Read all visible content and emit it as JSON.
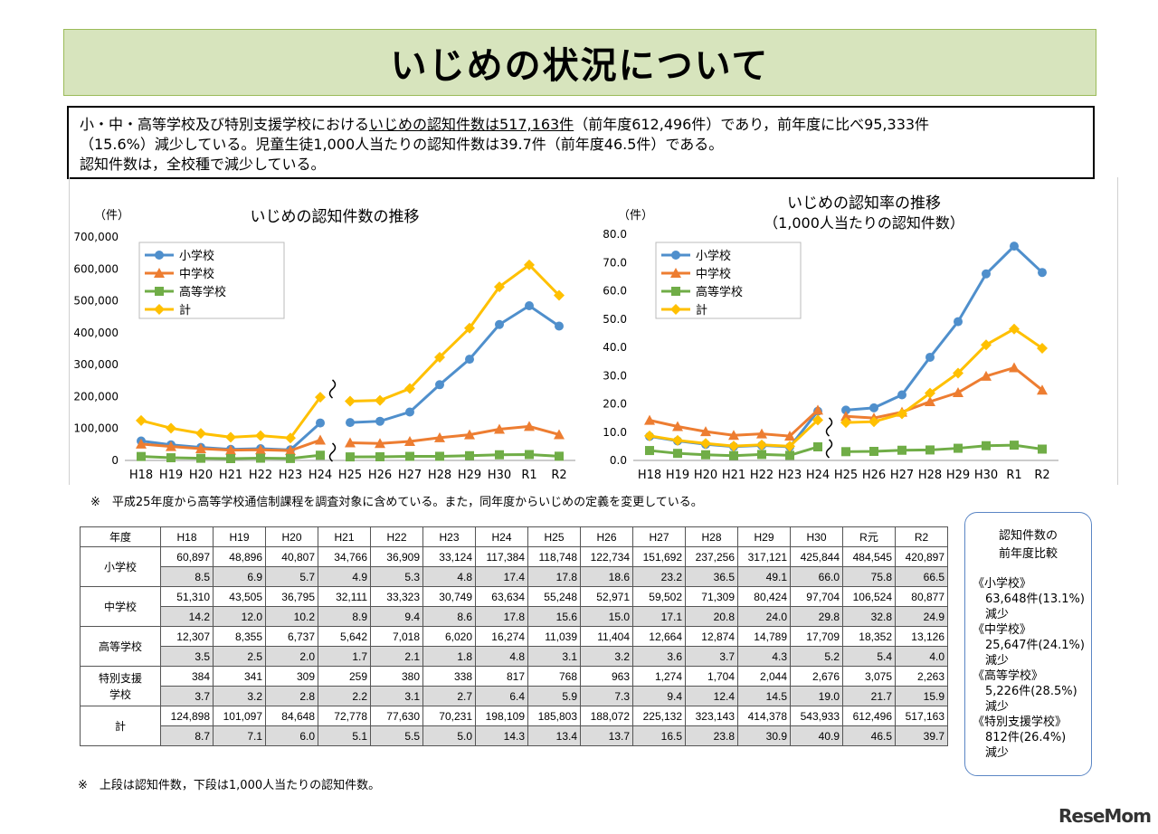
{
  "title": "いじめの状況について",
  "summary": {
    "line1_pre": "小・中・高等学校及び特別支援学校における",
    "line1_underline": "いじめの認知件数は517,163件",
    "line1_post": "（前年度612,496件）であり，前年度に比べ95,333件",
    "line2": "（15.6%）減少している。児童生徒1,000人当たりの認知件数は39.7件（前年度46.5件）である。",
    "line3": "認知件数は，全校種で減少している。"
  },
  "chart_data": [
    {
      "type": "line",
      "title": "いじめの認知件数の推移",
      "ylabel": "（件）",
      "ylim": [
        0,
        700000
      ],
      "yticks": [
        "700,000",
        "600,000",
        "500,000",
        "400,000",
        "300,000",
        "200,000",
        "100,000",
        "0"
      ],
      "categories": [
        "H18",
        "H19",
        "H20",
        "H21",
        "H22",
        "H23",
        "H24",
        "H25",
        "H26",
        "H27",
        "H28",
        "H29",
        "H30",
        "R1",
        "R2"
      ],
      "series": [
        {
          "name": "小学校",
          "color": "#4f8fcc",
          "marker": "circle",
          "values": [
            60897,
            48896,
            40807,
            34766,
            36909,
            33124,
            117384,
            118748,
            122734,
            151692,
            237256,
            317121,
            425844,
            484545,
            420897
          ]
        },
        {
          "name": "中学校",
          "color": "#ed7d31",
          "marker": "triangle",
          "values": [
            51310,
            43505,
            36795,
            32111,
            33323,
            30749,
            63634,
            55248,
            52971,
            59502,
            71309,
            80424,
            97704,
            106524,
            80877
          ]
        },
        {
          "name": "高等学校",
          "color": "#70ad47",
          "marker": "square",
          "values": [
            12307,
            8355,
            6737,
            5642,
            7018,
            6020,
            16274,
            11039,
            11404,
            12664,
            12874,
            14789,
            17709,
            18352,
            13126
          ]
        },
        {
          "name": "計",
          "color": "#ffc000",
          "marker": "diamond",
          "values": [
            124898,
            101097,
            84648,
            72778,
            77630,
            70231,
            198109,
            185803,
            188072,
            225132,
            323143,
            414378,
            543933,
            612496,
            517163
          ]
        }
      ]
    },
    {
      "type": "line",
      "title": "いじめの認知率の推移",
      "subtitle": "（1,000人当たりの認知件数）",
      "ylabel": "（件）",
      "ylim": [
        0,
        80
      ],
      "yticks": [
        "80.0",
        "70.0",
        "60.0",
        "50.0",
        "40.0",
        "30.0",
        "20.0",
        "10.0",
        "0.0"
      ],
      "categories": [
        "H18",
        "H19",
        "H20",
        "H21",
        "H22",
        "H23",
        "H24",
        "H25",
        "H26",
        "H27",
        "H28",
        "H29",
        "H30",
        "R1",
        "R2"
      ],
      "series": [
        {
          "name": "小学校",
          "color": "#4f8fcc",
          "marker": "circle",
          "values": [
            8.5,
            6.9,
            5.7,
            4.9,
            5.3,
            4.8,
            17.4,
            17.8,
            18.6,
            23.2,
            36.5,
            49.1,
            66.0,
            75.8,
            66.5
          ]
        },
        {
          "name": "中学校",
          "color": "#ed7d31",
          "marker": "triangle",
          "values": [
            14.2,
            12.0,
            10.2,
            8.9,
            9.4,
            8.6,
            17.8,
            15.6,
            15.0,
            17.1,
            20.8,
            24.0,
            29.8,
            32.8,
            24.9
          ]
        },
        {
          "name": "高等学校",
          "color": "#70ad47",
          "marker": "square",
          "values": [
            3.5,
            2.5,
            2.0,
            1.7,
            2.1,
            1.8,
            4.8,
            3.1,
            3.2,
            3.6,
            3.7,
            4.3,
            5.2,
            5.4,
            4.0
          ]
        },
        {
          "name": "計",
          "color": "#ffc000",
          "marker": "diamond",
          "values": [
            8.7,
            7.1,
            6.0,
            5.1,
            5.5,
            5.0,
            14.3,
            13.4,
            13.7,
            16.5,
            23.8,
            30.9,
            40.9,
            46.5,
            39.7
          ]
        }
      ]
    }
  ],
  "note1": "※　平成25年度から高等学校通信制課程を調査対象に含めている。また，同年度からいじめの定義を変更している。",
  "table": {
    "header_label": "年度",
    "years": [
      "H18",
      "H19",
      "H20",
      "H21",
      "H22",
      "H23",
      "H24",
      "H25",
      "H26",
      "H27",
      "H28",
      "H29",
      "H30",
      "R元",
      "R2"
    ],
    "rows": [
      {
        "label": "小学校",
        "counts": [
          "60,897",
          "48,896",
          "40,807",
          "34,766",
          "36,909",
          "33,124",
          "117,384",
          "118,748",
          "122,734",
          "151,692",
          "237,256",
          "317,121",
          "425,844",
          "484,545",
          "420,897"
        ],
        "rates": [
          "8.5",
          "6.9",
          "5.7",
          "4.9",
          "5.3",
          "4.8",
          "17.4",
          "17.8",
          "18.6",
          "23.2",
          "36.5",
          "49.1",
          "66.0",
          "75.8",
          "66.5"
        ]
      },
      {
        "label": "中学校",
        "counts": [
          "51,310",
          "43,505",
          "36,795",
          "32,111",
          "33,323",
          "30,749",
          "63,634",
          "55,248",
          "52,971",
          "59,502",
          "71,309",
          "80,424",
          "97,704",
          "106,524",
          "80,877"
        ],
        "rates": [
          "14.2",
          "12.0",
          "10.2",
          "8.9",
          "9.4",
          "8.6",
          "17.8",
          "15.6",
          "15.0",
          "17.1",
          "20.8",
          "24.0",
          "29.8",
          "32.8",
          "24.9"
        ]
      },
      {
        "label": "高等学校",
        "counts": [
          "12,307",
          "8,355",
          "6,737",
          "5,642",
          "7,018",
          "6,020",
          "16,274",
          "11,039",
          "11,404",
          "12,664",
          "12,874",
          "14,789",
          "17,709",
          "18,352",
          "13,126"
        ],
        "rates": [
          "3.5",
          "2.5",
          "2.0",
          "1.7",
          "2.1",
          "1.8",
          "4.8",
          "3.1",
          "3.2",
          "3.6",
          "3.7",
          "4.3",
          "5.2",
          "5.4",
          "4.0"
        ]
      },
      {
        "label": "特別支援学校",
        "label_l1": "特別支援",
        "label_l2": "学校",
        "counts": [
          "384",
          "341",
          "309",
          "259",
          "380",
          "338",
          "817",
          "768",
          "963",
          "1,274",
          "1,704",
          "2,044",
          "2,676",
          "3,075",
          "2,263"
        ],
        "rates": [
          "3.7",
          "3.2",
          "2.8",
          "2.2",
          "3.1",
          "2.7",
          "6.4",
          "5.9",
          "7.3",
          "9.4",
          "12.4",
          "14.5",
          "19.0",
          "21.7",
          "15.9"
        ]
      },
      {
        "label": "計",
        "counts": [
          "124,898",
          "101,097",
          "84,648",
          "72,778",
          "77,630",
          "70,231",
          "198,109",
          "185,803",
          "188,072",
          "225,132",
          "323,143",
          "414,378",
          "543,933",
          "612,496",
          "517,163"
        ],
        "rates": [
          "8.7",
          "7.1",
          "6.0",
          "5.1",
          "5.5",
          "5.0",
          "14.3",
          "13.4",
          "13.7",
          "16.5",
          "23.8",
          "30.9",
          "40.9",
          "46.5",
          "39.7"
        ]
      }
    ]
  },
  "note2": "※　上段は認知件数，下段は1,000人当たりの認知件数。",
  "side": {
    "head1": "認知件数の",
    "head2": "前年度比較",
    "items": [
      {
        "name": "《小学校》",
        "value": "63,648件(13.1%)",
        "status": "減少"
      },
      {
        "name": "《中学校》",
        "value": "25,647件(24.1%)",
        "status": "減少"
      },
      {
        "name": "《高等学校》",
        "value": "5,226件(28.5%)",
        "status": "減少"
      },
      {
        "name": "《特別支援学校》",
        "value": "812件(26.4%)",
        "status": "減少"
      }
    ]
  },
  "logo": "ReseMom"
}
